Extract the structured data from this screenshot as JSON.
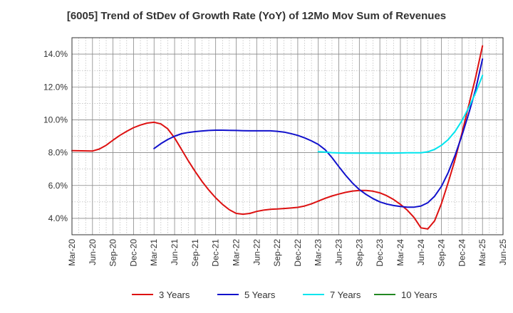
{
  "chart_data": {
    "type": "line",
    "title": "[6005]  Trend of StDev of Growth Rate (YoY) of 12Mo Mov Sum of Revenues",
    "xlabel": "",
    "ylabel": "",
    "x_ticks": [
      "Mar-20",
      "Jun-20",
      "Sep-20",
      "Dec-20",
      "Mar-21",
      "Jun-21",
      "Sep-21",
      "Dec-21",
      "Mar-22",
      "Jun-22",
      "Sep-22",
      "Dec-22",
      "Mar-23",
      "Jun-23",
      "Sep-23",
      "Dec-23",
      "Mar-24",
      "Jun-24",
      "Sep-24",
      "Dec-24",
      "Mar-25",
      "Jun-25"
    ],
    "y_ticks": [
      "4.0%",
      "6.0%",
      "8.0%",
      "10.0%",
      "12.0%",
      "14.0%"
    ],
    "y_tick_values": [
      4.0,
      6.0,
      8.0,
      10.0,
      12.0,
      14.0
    ],
    "ylim": [
      3.0,
      15.0
    ],
    "xlim_months": [
      0,
      63
    ],
    "grid": true,
    "legend_position": "bottom",
    "series": [
      {
        "name": "3 Years",
        "color": "#dd1111",
        "points": [
          [
            0,
            8.12
          ],
          [
            3,
            8.1
          ],
          [
            4,
            8.22
          ],
          [
            5,
            8.45
          ],
          [
            6,
            8.76
          ],
          [
            7,
            9.05
          ],
          [
            8,
            9.3
          ],
          [
            9,
            9.52
          ],
          [
            10,
            9.68
          ],
          [
            11,
            9.8
          ],
          [
            12,
            9.85
          ],
          [
            13,
            9.75
          ],
          [
            14,
            9.45
          ],
          [
            15,
            8.9
          ],
          [
            16,
            8.2
          ],
          [
            17,
            7.5
          ],
          [
            18,
            6.85
          ],
          [
            19,
            6.25
          ],
          [
            20,
            5.72
          ],
          [
            21,
            5.25
          ],
          [
            22,
            4.85
          ],
          [
            23,
            4.52
          ],
          [
            24,
            4.3
          ],
          [
            25,
            4.25
          ],
          [
            26,
            4.3
          ],
          [
            27,
            4.42
          ],
          [
            28,
            4.5
          ],
          [
            29,
            4.55
          ],
          [
            30,
            4.57
          ],
          [
            31,
            4.6
          ],
          [
            32,
            4.63
          ],
          [
            33,
            4.67
          ],
          [
            34,
            4.75
          ],
          [
            35,
            4.88
          ],
          [
            36,
            5.05
          ],
          [
            37,
            5.22
          ],
          [
            38,
            5.36
          ],
          [
            39,
            5.48
          ],
          [
            40,
            5.58
          ],
          [
            41,
            5.66
          ],
          [
            42,
            5.7
          ],
          [
            43,
            5.7
          ],
          [
            44,
            5.65
          ],
          [
            45,
            5.55
          ],
          [
            46,
            5.38
          ],
          [
            47,
            5.15
          ],
          [
            48,
            4.85
          ],
          [
            49,
            4.5
          ],
          [
            50,
            4.05
          ],
          [
            51,
            3.42
          ],
          [
            52,
            3.35
          ],
          [
            53,
            3.85
          ],
          [
            54,
            4.9
          ],
          [
            55,
            6.2
          ],
          [
            56,
            7.6
          ],
          [
            57,
            9.2
          ],
          [
            58,
            10.9
          ],
          [
            59,
            12.6
          ],
          [
            60,
            14.5
          ]
        ]
      },
      {
        "name": "5 Years",
        "color": "#1111cc",
        "points": [
          [
            12,
            8.25
          ],
          [
            13,
            8.55
          ],
          [
            14,
            8.8
          ],
          [
            15,
            9.0
          ],
          [
            16,
            9.15
          ],
          [
            17,
            9.23
          ],
          [
            18,
            9.28
          ],
          [
            19,
            9.32
          ],
          [
            20,
            9.35
          ],
          [
            21,
            9.37
          ],
          [
            22,
            9.37
          ],
          [
            23,
            9.36
          ],
          [
            24,
            9.35
          ],
          [
            25,
            9.34
          ],
          [
            26,
            9.33
          ],
          [
            27,
            9.33
          ],
          [
            28,
            9.33
          ],
          [
            29,
            9.33
          ],
          [
            30,
            9.3
          ],
          [
            31,
            9.25
          ],
          [
            32,
            9.16
          ],
          [
            33,
            9.05
          ],
          [
            34,
            8.9
          ],
          [
            35,
            8.72
          ],
          [
            36,
            8.5
          ],
          [
            37,
            8.18
          ],
          [
            38,
            7.7
          ],
          [
            39,
            7.15
          ],
          [
            40,
            6.62
          ],
          [
            41,
            6.15
          ],
          [
            42,
            5.75
          ],
          [
            43,
            5.45
          ],
          [
            44,
            5.2
          ],
          [
            45,
            5.0
          ],
          [
            46,
            4.87
          ],
          [
            47,
            4.78
          ],
          [
            48,
            4.72
          ],
          [
            49,
            4.68
          ],
          [
            50,
            4.68
          ],
          [
            51,
            4.75
          ],
          [
            52,
            4.95
          ],
          [
            53,
            5.35
          ],
          [
            54,
            5.95
          ],
          [
            55,
            6.8
          ],
          [
            56,
            7.85
          ],
          [
            57,
            9.05
          ],
          [
            58,
            10.4
          ],
          [
            59,
            11.85
          ],
          [
            60,
            13.7
          ]
        ]
      },
      {
        "name": "7 Years",
        "color": "#00e5ee",
        "points": [
          [
            36,
            8.06
          ],
          [
            37,
            8.04
          ],
          [
            38,
            8.0
          ],
          [
            39,
            7.98
          ],
          [
            40,
            7.97
          ],
          [
            41,
            7.97
          ],
          [
            42,
            7.97
          ],
          [
            43,
            7.97
          ],
          [
            44,
            7.97
          ],
          [
            45,
            7.97
          ],
          [
            46,
            7.97
          ],
          [
            47,
            7.97
          ],
          [
            48,
            7.98
          ],
          [
            49,
            7.99
          ],
          [
            50,
            7.99
          ],
          [
            51,
            7.99
          ],
          [
            52,
            8.05
          ],
          [
            53,
            8.2
          ],
          [
            54,
            8.45
          ],
          [
            55,
            8.8
          ],
          [
            56,
            9.3
          ],
          [
            57,
            9.95
          ],
          [
            58,
            10.75
          ],
          [
            59,
            11.65
          ],
          [
            60,
            12.7
          ]
        ]
      },
      {
        "name": "10 Years",
        "color": "#228822",
        "points": []
      }
    ]
  }
}
